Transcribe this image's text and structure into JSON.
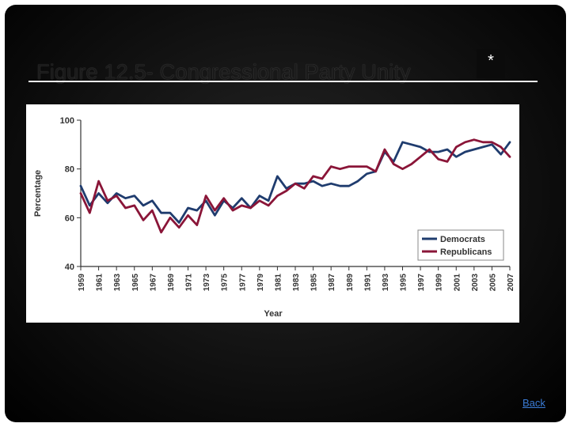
{
  "slide": {
    "title": "Figure 12.5- Congressional Party Unity",
    "star_symbol": "*",
    "back_label": "Back"
  },
  "chart_data": {
    "type": "line",
    "title": "",
    "xlabel": "Year",
    "ylabel": "Percentage",
    "ylim": [
      40,
      100
    ],
    "yticks": [
      40,
      60,
      80,
      100
    ],
    "xlim": [
      1959,
      2007
    ],
    "xticks": [
      1959,
      1961,
      1963,
      1965,
      1967,
      1969,
      1971,
      1973,
      1975,
      1977,
      1979,
      1981,
      1983,
      1985,
      1987,
      1989,
      1991,
      1993,
      1995,
      1997,
      1999,
      2001,
      2003,
      2005,
      2007
    ],
    "legend_position": "bottom-right",
    "grid": false,
    "x": [
      1959,
      1960,
      1961,
      1962,
      1963,
      1964,
      1965,
      1966,
      1967,
      1968,
      1969,
      1970,
      1971,
      1972,
      1973,
      1974,
      1975,
      1976,
      1977,
      1978,
      1979,
      1980,
      1981,
      1982,
      1983,
      1984,
      1985,
      1986,
      1987,
      1988,
      1989,
      1990,
      1991,
      1992,
      1993,
      1994,
      1995,
      1996,
      1997,
      1998,
      1999,
      2000,
      2001,
      2002,
      2003,
      2004,
      2005,
      2006,
      2007
    ],
    "series": [
      {
        "name": "Democrats",
        "color": "#1f3c6e",
        "values": [
          73,
          65,
          70,
          66,
          70,
          68,
          69,
          65,
          67,
          62,
          62,
          58,
          64,
          63,
          67,
          61,
          67,
          64,
          68,
          64,
          69,
          67,
          77,
          72,
          74,
          74,
          75,
          73,
          74,
          73,
          73,
          75,
          78,
          79,
          87,
          83,
          91,
          90,
          89,
          87,
          87,
          88,
          85,
          87,
          88,
          89,
          90,
          86,
          91
        ]
      },
      {
        "name": "Republicans",
        "color": "#8a1538",
        "values": [
          70,
          62,
          75,
          67,
          69,
          64,
          65,
          59,
          63,
          54,
          60,
          56,
          61,
          57,
          69,
          63,
          68,
          63,
          65,
          64,
          67,
          65,
          69,
          71,
          74,
          72,
          77,
          76,
          81,
          80,
          81,
          81,
          81,
          79,
          88,
          82,
          80,
          82,
          85,
          88,
          84,
          83,
          89,
          91,
          92,
          91,
          91,
          89,
          85
        ]
      }
    ]
  }
}
